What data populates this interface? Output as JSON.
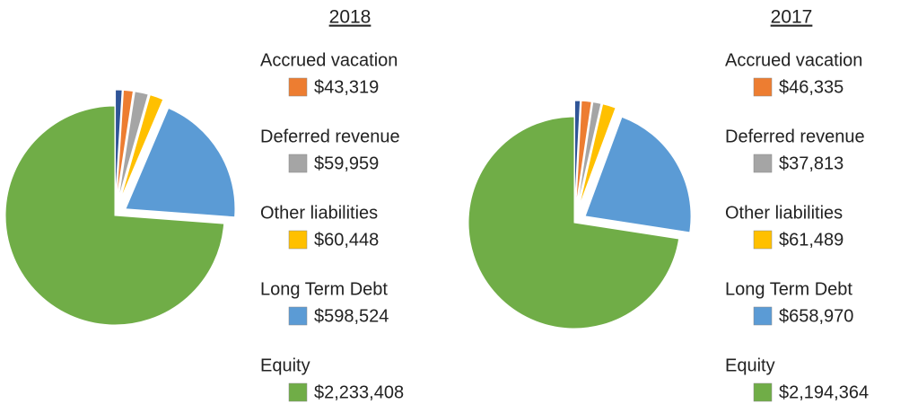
{
  "chart_data": [
    {
      "type": "pie",
      "title": "2018",
      "categories": [
        null,
        "Accrued vacation",
        "Deferred revenue",
        "Other liabilities",
        "Long Term Debt",
        "Equity"
      ],
      "values": [
        30000,
        43319,
        59959,
        60448,
        598524,
        2233408
      ],
      "value_labels": [
        null,
        "$43,319",
        "$59,959",
        "$60,448",
        "$598,524",
        "$2,233,408"
      ],
      "colors": [
        "#2f5597",
        "#ed7d31",
        "#a5a5a5",
        "#ffc000",
        "#5b9bd5",
        "#70ad47"
      ]
    },
    {
      "type": "pie",
      "title": "2017",
      "categories": [
        null,
        "Accrued vacation",
        "Deferred revenue",
        "Other liabilities",
        "Long Term Debt",
        "Equity"
      ],
      "values": [
        25000,
        46335,
        37813,
        61489,
        658970,
        2194364
      ],
      "value_labels": [
        null,
        "$46,335",
        "$37,813",
        "$61,489",
        "$658,970",
        "$2,194,364"
      ],
      "colors": [
        "#2f5597",
        "#ed7d31",
        "#a5a5a5",
        "#ffc000",
        "#5b9bd5",
        "#70ad47"
      ]
    }
  ]
}
